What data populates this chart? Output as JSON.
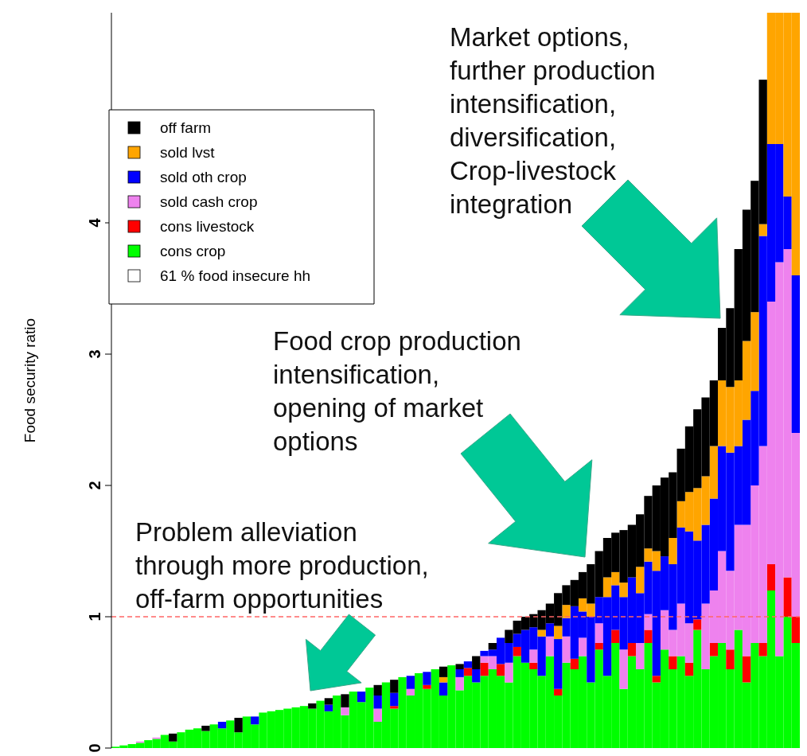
{
  "chart_data": {
    "type": "bar",
    "stacked": true,
    "ylabel": "Food security ratio",
    "categories": [
      null,
      null,
      null,
      null,
      null,
      null,
      null,
      null,
      null,
      null,
      null,
      null,
      null,
      null,
      null,
      null,
      null,
      null,
      null,
      null,
      null,
      null,
      null,
      null,
      null,
      null,
      null,
      null,
      null,
      null,
      null,
      null,
      null,
      null,
      null,
      null,
      null,
      null,
      null,
      null,
      null,
      null,
      null,
      null,
      null,
      null,
      null,
      null,
      null,
      null,
      null,
      null,
      null,
      null,
      null,
      null,
      null,
      null,
      null,
      null,
      null,
      null,
      null,
      null,
      null,
      null,
      null,
      null,
      null,
      null,
      null,
      null,
      null,
      null,
      null,
      null,
      null,
      null,
      null,
      null,
      null,
      null,
      null,
      null
    ],
    "series": [
      {
        "name": "cons crop",
        "color": "#00ff00",
        "values": [
          0.01,
          0.02,
          0.03,
          0.04,
          0.06,
          0.07,
          0.1,
          0.05,
          0.12,
          0.14,
          0.15,
          0.13,
          0.18,
          0.15,
          0.21,
          0.12,
          0.24,
          0.18,
          0.27,
          0.28,
          0.29,
          0.3,
          0.31,
          0.32,
          0.3,
          0.36,
          0.28,
          0.4,
          0.25,
          0.43,
          0.35,
          0.46,
          0.2,
          0.5,
          0.3,
          0.54,
          0.4,
          0.57,
          0.45,
          0.6,
          0.4,
          0.63,
          0.44,
          0.55,
          0.5,
          0.55,
          0.6,
          0.55,
          0.5,
          0.7,
          0.65,
          0.6,
          0.55,
          0.7,
          0.4,
          0.65,
          0.6,
          0.7,
          0.5,
          0.75,
          0.55,
          0.8,
          0.45,
          0.7,
          0.6,
          0.8,
          0.5,
          0.75,
          0.6,
          0.7,
          0.55,
          0.9,
          0.6,
          0.7,
          0.8,
          0.6,
          0.9,
          0.5,
          0.8,
          0.7,
          1.2,
          0.7,
          1.0,
          0.8
        ]
      },
      {
        "name": "cons livestock",
        "color": "#ff0000",
        "values": [
          0,
          0,
          0,
          0,
          0,
          0,
          0,
          0,
          0,
          0,
          0,
          0,
          0,
          0,
          0,
          0,
          0,
          0,
          0,
          0,
          0,
          0,
          0,
          0,
          0,
          0,
          0,
          0,
          0,
          0,
          0,
          0,
          0,
          0,
          0.02,
          0,
          0,
          0,
          0.03,
          0,
          0,
          0,
          0,
          0.06,
          0,
          0.1,
          0,
          0.09,
          0,
          0.07,
          0,
          0.05,
          0,
          0,
          0.05,
          0,
          0.08,
          0,
          0,
          0.05,
          0,
          0.1,
          0,
          0.1,
          0,
          0.1,
          0.05,
          0,
          0.1,
          0,
          0.1,
          0.08,
          0,
          0.1,
          0,
          0.15,
          0,
          0.2,
          0,
          0.1,
          0.2,
          0,
          0.3,
          0.2
        ]
      },
      {
        "name": "sold cash crop",
        "color": "#ee82ee",
        "values": [
          0,
          0,
          0,
          0.01,
          0,
          0.01,
          0,
          0,
          0,
          0,
          0,
          0,
          0,
          0,
          0,
          0,
          0,
          0,
          0,
          0,
          0,
          0,
          0,
          0,
          0,
          0,
          0,
          0,
          0.06,
          0,
          0,
          0,
          0.1,
          0,
          0,
          0,
          0.05,
          0,
          0,
          0,
          0,
          0,
          0.1,
          0,
          0,
          0.05,
          0.1,
          0,
          0.15,
          0,
          0,
          0.1,
          0,
          0.15,
          0,
          0.2,
          0,
          0.14,
          0,
          0.15,
          0,
          0,
          0.3,
          0,
          0.2,
          0.12,
          0,
          0.3,
          0.2,
          0.4,
          0.3,
          0,
          0.5,
          0.4,
          0.7,
          0.6,
          0.8,
          1.0,
          1.2,
          1.5,
          2.0,
          3.0,
          2.5,
          1.4
        ]
      },
      {
        "name": "sold oth crop",
        "color": "#0000ff",
        "values": [
          0,
          0,
          0,
          0,
          0,
          0,
          0,
          0,
          0,
          0,
          0,
          0,
          0,
          0.05,
          0,
          0,
          0,
          0.06,
          0,
          0,
          0,
          0,
          0,
          0,
          0,
          0,
          0.05,
          0,
          0,
          0,
          0.08,
          0,
          0.1,
          0,
          0.1,
          0,
          0.1,
          0,
          0.1,
          0,
          0.1,
          0,
          0.06,
          0.05,
          0.1,
          0.04,
          0.05,
          0.2,
          0.15,
          0.1,
          0.25,
          0.17,
          0.3,
          0.1,
          0.38,
          0.14,
          0.4,
          0.2,
          0.5,
          0.2,
          0.6,
          0.34,
          0.4,
          0.5,
          0.38,
          0.4,
          0.8,
          0.41,
          0.5,
          0.58,
          0.7,
          0.6,
          0.6,
          0.7,
          0.8,
          0.9,
          0.6,
          0.8,
          0.72,
          1.6,
          1.2,
          0.9,
          0.4,
          1.2
        ]
      },
      {
        "name": "sold lvst",
        "color": "#ffa500",
        "values": [
          0,
          0,
          0,
          0,
          0,
          0,
          0,
          0,
          0,
          0,
          0,
          0,
          0,
          0,
          0,
          0,
          0,
          0,
          0,
          0,
          0,
          0,
          0,
          0,
          0,
          0,
          0,
          0,
          0,
          0,
          0,
          0,
          0,
          0,
          0,
          0,
          0,
          0,
          0,
          0,
          0.04,
          0,
          0,
          0,
          0,
          0,
          0,
          0,
          0,
          0,
          0,
          0,
          0.05,
          0,
          0.1,
          0.1,
          0,
          0.1,
          0.1,
          0,
          0.15,
          0.1,
          0.11,
          0,
          0.2,
          0.1,
          0.15,
          0,
          0.2,
          0.2,
          0.3,
          0.4,
          0.37,
          0.4,
          0.5,
          0.5,
          0.5,
          0.6,
          0.6,
          0.09,
          1.0,
          1.0,
          1.4,
          2.0
        ]
      },
      {
        "name": "off farm",
        "color": "#000000",
        "values": [
          0,
          0,
          0,
          0,
          0,
          0,
          0,
          0.06,
          0,
          0,
          0,
          0.04,
          0,
          0,
          0,
          0.11,
          0,
          0,
          0,
          0,
          0,
          0,
          0,
          0,
          0.04,
          0,
          0.05,
          0,
          0.1,
          0,
          0,
          0,
          0.08,
          0,
          0.1,
          0,
          0,
          0,
          0,
          0,
          0.08,
          0,
          0.04,
          0,
          0.1,
          0,
          0.05,
          0,
          0.1,
          0.1,
          0.1,
          0.1,
          0.15,
          0.15,
          0.25,
          0.15,
          0.2,
          0.2,
          0.3,
          0.35,
          0.3,
          0.3,
          0.4,
          0.4,
          0.4,
          0.4,
          0.5,
          0.6,
          0.5,
          0.4,
          0.5,
          0.6,
          0.6,
          0.5,
          0.4,
          0.6,
          1.0,
          1.0,
          1.0,
          1.1,
          0,
          0,
          0,
          0
        ]
      },
      {
        "name": "61 % food insecure hh",
        "color": "#ffffff",
        "values": [
          null,
          null,
          null,
          null,
          null,
          null,
          null,
          null,
          null,
          null,
          null,
          null,
          null,
          null,
          null,
          null,
          null,
          null,
          null,
          null,
          null,
          null,
          null,
          null,
          null,
          null,
          null,
          null,
          null,
          null,
          null,
          null,
          null,
          null,
          null,
          null,
          null,
          null,
          null,
          null,
          null,
          null,
          null,
          null,
          null,
          null,
          null,
          null,
          null,
          null,
          null,
          null,
          null,
          null,
          null,
          null,
          null,
          null,
          null,
          null,
          null,
          null,
          null,
          null,
          null,
          null,
          null,
          null,
          null,
          null,
          null,
          null,
          null,
          null,
          null,
          null,
          null,
          null,
          null,
          null,
          null,
          null,
          null,
          null
        ]
      }
    ],
    "ylim": [
      0,
      5.6
    ],
    "yticks": [
      0,
      1,
      2,
      3,
      4
    ],
    "tick_labels": "y",
    "grid": false,
    "legend": "top left",
    "ref_lines": [
      {
        "axis": "y",
        "value": 1,
        "label": null,
        "color": "#ff6666",
        "line_style": "dashed"
      }
    ],
    "annotations": [
      "Market options,\nfurther production\nintensification,\ndiversification,\nCrop-livestock\nintegration",
      "Food crop production\nintensification,\nopening of market\noptions",
      "Problem alleviation\nthrough more production,\noff-farm opportunities"
    ]
  }
}
